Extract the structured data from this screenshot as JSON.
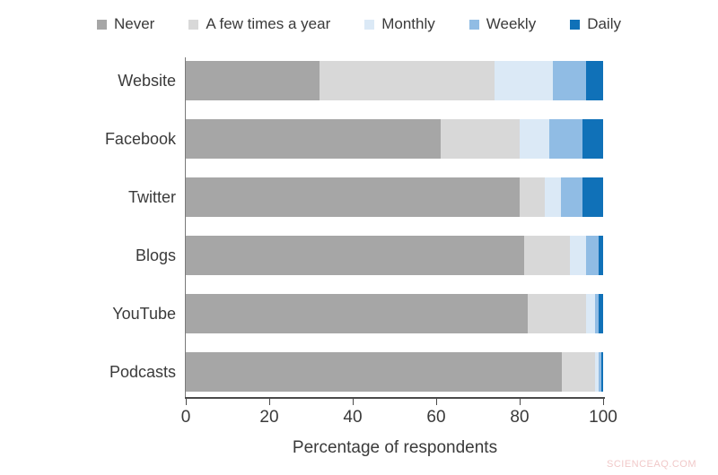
{
  "watermark": "SCIENCEAQ.COM",
  "chart_data": {
    "type": "bar",
    "orientation": "horizontal",
    "stacked": true,
    "title": "",
    "xlabel": "Percentage of respondents",
    "ylabel": "",
    "xlim": [
      0,
      100
    ],
    "xticks": [
      0,
      20,
      40,
      60,
      80,
      100
    ],
    "grid": false,
    "legend_position": "top",
    "categories": [
      "Website",
      "Facebook",
      "Twitter",
      "Blogs",
      "YouTube",
      "Podcasts"
    ],
    "series": [
      {
        "name": "Never",
        "color": "#a6a6a6",
        "values": [
          32,
          61,
          80,
          81,
          82,
          90
        ]
      },
      {
        "name": "A few times a year",
        "color": "#d8d8d8",
        "values": [
          42,
          19,
          6,
          11,
          14,
          8
        ]
      },
      {
        "name": "Monthly",
        "color": "#dbe9f6",
        "values": [
          14,
          7,
          4,
          4,
          2,
          1
        ]
      },
      {
        "name": "Weekly",
        "color": "#90bce4",
        "values": [
          8,
          8,
          5,
          3,
          1,
          0.5
        ]
      },
      {
        "name": "Daily",
        "color": "#1071b8",
        "values": [
          4,
          5,
          5,
          1,
          1,
          0.5
        ]
      }
    ]
  }
}
